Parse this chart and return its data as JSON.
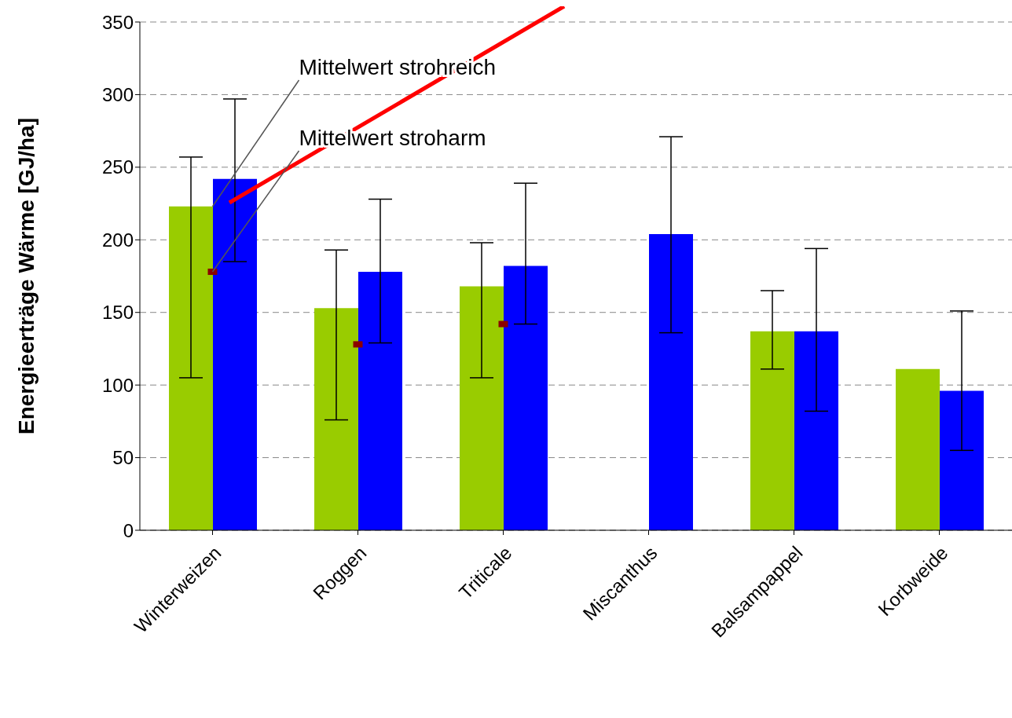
{
  "chart_data": {
    "type": "bar",
    "ylabel": "Energieerträge Wärme [GJ/ha]",
    "categories": [
      "Winterweizen",
      "Roggen",
      "Triticale",
      "Miscanthus",
      "Balsampappel",
      "Korbweide"
    ],
    "series": [
      {
        "color": "#99cc00",
        "values": [
          223,
          153,
          168,
          null,
          137,
          111
        ],
        "errors": [
          [
            105,
            257
          ],
          [
            76,
            193
          ],
          [
            105,
            198
          ],
          null,
          [
            111,
            165
          ],
          null
        ]
      },
      {
        "color": "#0000ff",
        "values": [
          242,
          178,
          182,
          204,
          137,
          96
        ],
        "errors": [
          [
            185,
            297
          ],
          [
            129,
            228
          ],
          [
            142,
            239
          ],
          [
            136,
            271
          ],
          [
            82,
            194
          ],
          [
            55,
            151
          ]
        ]
      },
      {
        "type": "scatter",
        "color": "#8b0000",
        "values": [
          178,
          128,
          142,
          null,
          null,
          null
        ]
      }
    ],
    "ylim": [
      0,
      350
    ],
    "yticks": [
      0,
      50,
      100,
      150,
      200,
      250,
      300,
      350
    ],
    "grid": "y",
    "annotations": [
      {
        "text": "Mittelwert strohreich",
        "x": "Winterweizen",
        "y": 223
      },
      {
        "text": "Mittelwert stroharm",
        "x": "Winterweizen",
        "y": 178
      }
    ]
  }
}
